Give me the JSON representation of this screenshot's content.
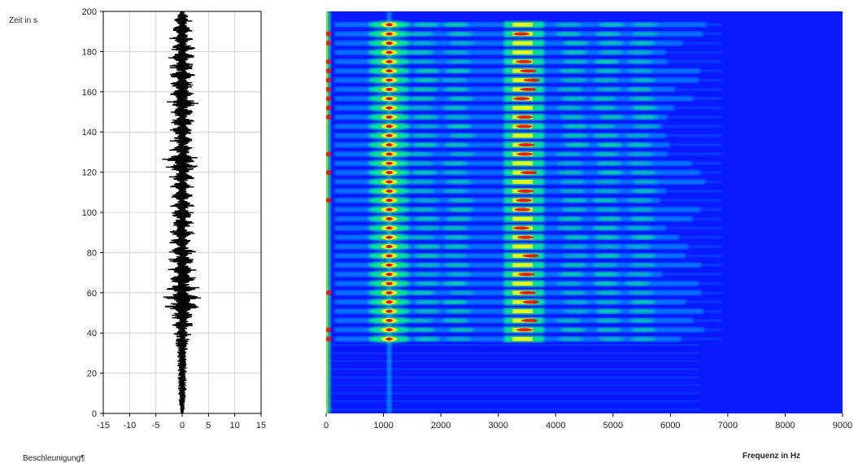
{
  "chart_data": [
    {
      "type": "line",
      "panel": "waveform",
      "ylabel": "Zeit in s",
      "xlabel": "Beschleunigung¶",
      "xlim": [
        -15,
        15
      ],
      "ylim": [
        0,
        200
      ],
      "x_ticks": [
        -15,
        -10,
        -5,
        0,
        5,
        10,
        15
      ],
      "y_ticks": [
        0,
        20,
        40,
        60,
        80,
        100,
        120,
        140,
        160,
        180,
        200
      ],
      "grid": true,
      "series": [
        {
          "color": "#000000",
          "envelope": {
            "time": [
              0,
              10,
              20,
              30,
              36,
              40,
              45,
              50,
              55,
              60,
              65,
              70,
              75,
              80,
              85,
              90,
              95,
              100,
              105,
              110,
              115,
              120,
              125,
              130,
              135,
              140,
              145,
              150,
              155,
              160,
              165,
              170,
              175,
              180,
              185,
              190,
              195,
              200
            ],
            "amplitude": [
              0.4,
              0.8,
              1.0,
              1.0,
              1.4,
              2.0,
              2.6,
              3.0,
              4.5,
              3.5,
              3.8,
              3.2,
              3.0,
              3.0,
              2.8,
              2.6,
              2.6,
              3.0,
              2.5,
              2.6,
              2.4,
              2.8,
              4.5,
              2.6,
              2.6,
              2.8,
              2.8,
              2.6,
              3.5,
              2.8,
              2.8,
              2.8,
              3.0,
              2.6,
              2.6,
              2.4,
              2.2,
              0.3
            ]
          }
        }
      ]
    },
    {
      "type": "heatmap",
      "panel": "spectrogram",
      "xlabel": "Frequenz in Hz",
      "xlim": [
        0,
        9000
      ],
      "ylim": [
        0,
        200
      ],
      "x_ticks": [
        0,
        1000,
        2000,
        3000,
        4000,
        5000,
        6000,
        7000,
        8000,
        9000
      ],
      "colormap": [
        "#0000ff",
        "#00c8ff",
        "#00ff80",
        "#ffff00",
        "#ff0000"
      ],
      "background_color": "#0a1aff",
      "onset_time_s": 37,
      "stripe_period_s": 4.6,
      "stripe_start_s": 37,
      "stripe_end_s": 197,
      "dominant_frequencies_hz": [
        1100,
        3300,
        3500
      ],
      "max_stripe_frequency_hz": 6100,
      "faint_extent_frequency_hz": 6900
    }
  ]
}
